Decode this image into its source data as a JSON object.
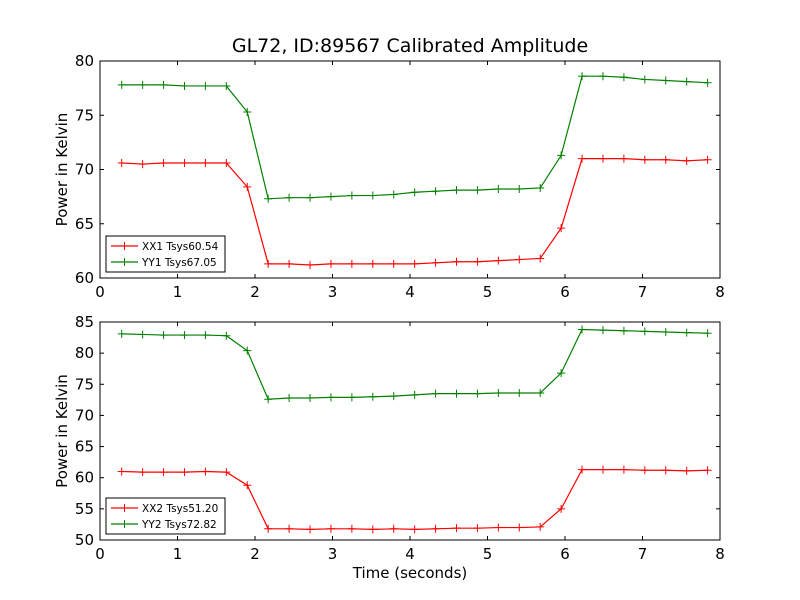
{
  "chart_data": {
    "type": "line",
    "title": "GL72, ID:89567 Calibrated Amplitude",
    "xlabel": "Time (seconds)",
    "subplots": [
      {
        "ylabel": "Power in Kelvin",
        "xlim": [
          0,
          8
        ],
        "ylim": [
          60,
          80
        ],
        "xticks": [
          0,
          1,
          2,
          3,
          4,
          5,
          6,
          7,
          8
        ],
        "yticks": [
          60,
          65,
          70,
          75,
          80
        ],
        "legend_position": "lower-left",
        "x": [
          0.28,
          0.55,
          0.82,
          1.09,
          1.36,
          1.63,
          1.9,
          2.17,
          2.44,
          2.71,
          2.98,
          3.25,
          3.52,
          3.79,
          4.06,
          4.33,
          4.6,
          4.87,
          5.14,
          5.41,
          5.68,
          5.95,
          6.22,
          6.49,
          6.76,
          7.03,
          7.3,
          7.57,
          7.84
        ],
        "series": [
          {
            "name": "XX1 Tsys60.54",
            "color": "#ff0000",
            "values": [
              70.6,
              70.5,
              70.6,
              70.6,
              70.6,
              70.6,
              68.4,
              61.3,
              61.3,
              61.2,
              61.3,
              61.3,
              61.3,
              61.3,
              61.3,
              61.4,
              61.5,
              61.5,
              61.6,
              61.7,
              61.8,
              64.6,
              71.0,
              71.0,
              71.0,
              70.9,
              70.9,
              70.8,
              70.9
            ]
          },
          {
            "name": "YY1 Tsys67.05",
            "color": "#008000",
            "values": [
              77.8,
              77.8,
              77.8,
              77.7,
              77.7,
              77.7,
              75.3,
              67.3,
              67.4,
              67.4,
              67.5,
              67.6,
              67.6,
              67.7,
              67.9,
              68.0,
              68.1,
              68.1,
              68.2,
              68.2,
              68.3,
              71.3,
              78.6,
              78.6,
              78.5,
              78.3,
              78.2,
              78.1,
              78.0
            ]
          }
        ]
      },
      {
        "ylabel": "Power in Kelvin",
        "xlim": [
          0,
          8
        ],
        "ylim": [
          50,
          85
        ],
        "xticks": [
          0,
          1,
          2,
          3,
          4,
          5,
          6,
          7,
          8
        ],
        "yticks": [
          50,
          55,
          60,
          65,
          70,
          75,
          80,
          85
        ],
        "legend_position": "lower-left",
        "x": [
          0.28,
          0.55,
          0.82,
          1.09,
          1.36,
          1.63,
          1.9,
          2.17,
          2.44,
          2.71,
          2.98,
          3.25,
          3.52,
          3.79,
          4.06,
          4.33,
          4.6,
          4.87,
          5.14,
          5.41,
          5.68,
          5.95,
          6.22,
          6.49,
          6.76,
          7.03,
          7.3,
          7.57,
          7.84
        ],
        "series": [
          {
            "name": "XX2 Tsys51.20",
            "color": "#ff0000",
            "values": [
              61.0,
              60.9,
              60.9,
              60.9,
              61.0,
              60.9,
              58.8,
              51.8,
              51.8,
              51.7,
              51.8,
              51.8,
              51.7,
              51.8,
              51.7,
              51.8,
              51.9,
              51.9,
              52.0,
              52.0,
              52.1,
              55.0,
              61.3,
              61.3,
              61.3,
              61.2,
              61.2,
              61.1,
              61.2
            ]
          },
          {
            "name": "YY2 Tsys72.82",
            "color": "#008000",
            "values": [
              83.1,
              83.0,
              82.9,
              82.9,
              82.9,
              82.8,
              80.4,
              72.6,
              72.8,
              72.8,
              72.9,
              72.9,
              73.0,
              73.1,
              73.3,
              73.5,
              73.5,
              73.5,
              73.6,
              73.6,
              73.6,
              76.8,
              83.8,
              83.7,
              83.6,
              83.5,
              83.4,
              83.3,
              83.2
            ]
          }
        ]
      }
    ]
  }
}
